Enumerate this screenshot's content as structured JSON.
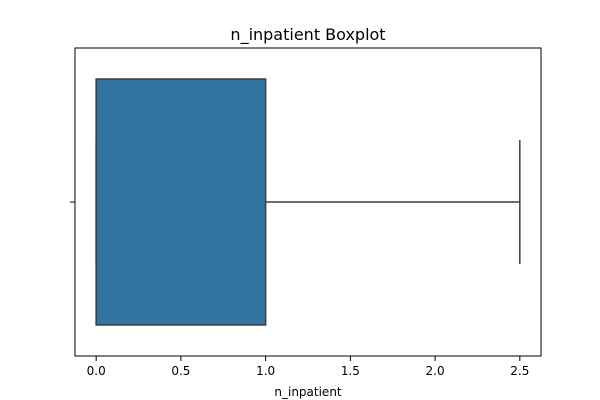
{
  "chart_data": {
    "type": "boxplot",
    "title": "n_inpatient Boxplot",
    "xlabel": "n_inpatient",
    "ylabel": "",
    "orientation": "horizontal",
    "xlim": [
      -0.125,
      2.625
    ],
    "xticks": [
      0.0,
      0.5,
      1.0,
      1.5,
      2.0,
      2.5
    ],
    "xtick_labels": [
      "0.0",
      "0.5",
      "1.0",
      "1.5",
      "2.0",
      "2.5"
    ],
    "grid": false,
    "series": [
      {
        "whisker_low": 0.0,
        "q1": 0.0,
        "median": 0.0,
        "q3": 1.0,
        "whisker_high": 2.5
      }
    ],
    "colors": {
      "box_fill": "#3274a1",
      "line": "#3f3f3f",
      "axes": "#000000"
    }
  }
}
